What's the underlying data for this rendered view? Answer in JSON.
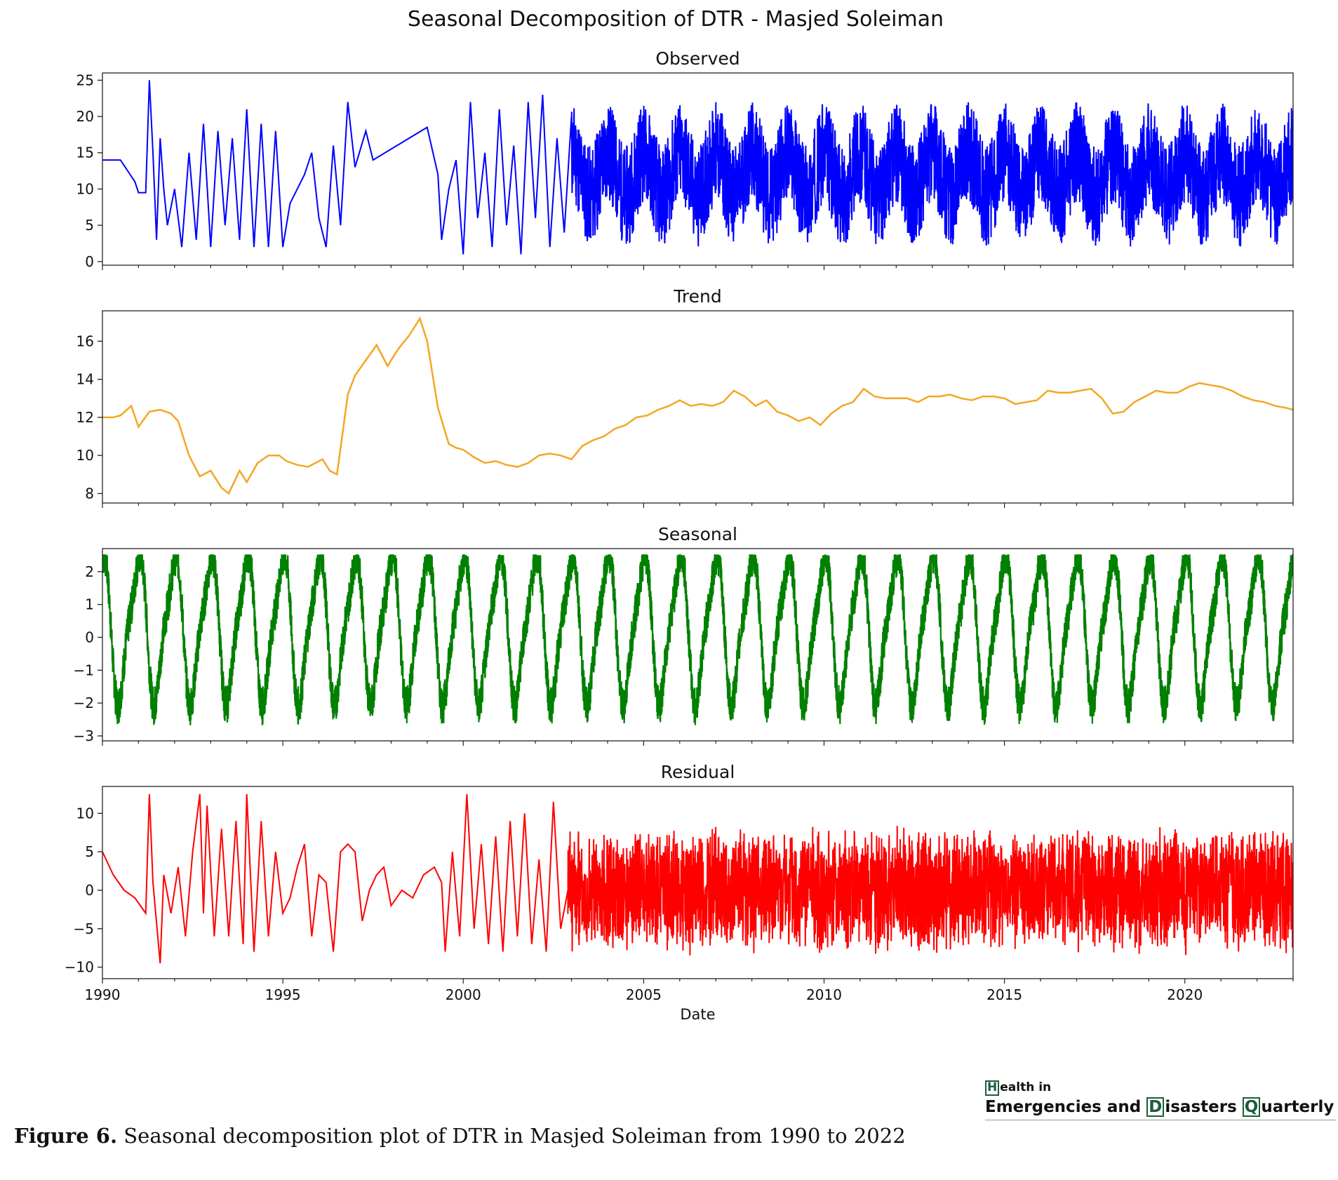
{
  "figure": {
    "suptitle": "Seasonal Decomposition of DTR - Masjed Soleiman",
    "caption_label": "Figure 6.",
    "caption_text": " Seasonal decomposition plot of DTR in Masjed Soleiman from 1990 to 2022"
  },
  "logo": {
    "line1_letter": "H",
    "line1_rest": "ealth in",
    "line2_word1": "Emergencies and ",
    "line2_letter2": "D",
    "line2_word2": "isasters ",
    "line2_letter3": "Q",
    "line2_word3": "uarterly",
    "accent_color": "#1b5e3a"
  },
  "chart_data": [
    {
      "type": "line",
      "title": "Observed",
      "color": "#0000ff",
      "xlim": [
        1990,
        2023
      ],
      "ylim": [
        -0.5,
        26
      ],
      "yticks": [
        0,
        5,
        10,
        15,
        20,
        25
      ],
      "ytick_labels": [
        "0",
        "5",
        "10",
        "15",
        "20",
        "25"
      ],
      "series": [
        {
          "x": [
            1990.0,
            1990.5,
            1990.9,
            1991.0,
            1991.2,
            1991.3,
            1991.4,
            1991.5,
            1991.6,
            1991.7,
            1991.8,
            1992.0,
            1992.2,
            1992.4,
            1992.6,
            1992.8,
            1993.0,
            1993.2,
            1993.4,
            1993.6,
            1993.8,
            1994.0,
            1994.2,
            1994.4,
            1994.6,
            1994.8,
            1995.0,
            1995.2,
            1995.4,
            1995.6,
            1995.8,
            1996.0,
            1996.2,
            1996.4,
            1996.6,
            1996.8,
            1997.0,
            1997.3,
            1997.5,
            1999.0,
            1999.3,
            1999.4,
            1999.6,
            1999.8,
            2000.0,
            2000.2,
            2000.4,
            2000.6,
            2000.8,
            2001.0,
            2001.2,
            2001.4,
            2001.6,
            2001.8,
            2002.0,
            2002.2,
            2002.4,
            2002.6,
            2002.8,
            2003.0
          ],
          "y": [
            14,
            14,
            11,
            9.5,
            9.5,
            25,
            15,
            3,
            17,
            10,
            5,
            10,
            2,
            15,
            3,
            19,
            2,
            18,
            5,
            17,
            3,
            21,
            2,
            19,
            2,
            18,
            2,
            8,
            10,
            12,
            15,
            6,
            2,
            16,
            5,
            22,
            13,
            18,
            14,
            18.5,
            12,
            3,
            10,
            14,
            1,
            22,
            6,
            15,
            2,
            21,
            5,
            16,
            1,
            22,
            6,
            23,
            2,
            17,
            4,
            20
          ]
        }
      ]
    },
    {
      "type": "line",
      "title": "Trend",
      "color": "#f5a623",
      "xlim": [
        1990,
        2023
      ],
      "ylim": [
        7.5,
        17.6
      ],
      "yticks": [
        8,
        10,
        12,
        14,
        16
      ],
      "ytick_labels": [
        "8",
        "10",
        "12",
        "14",
        "16"
      ],
      "series": [
        {
          "x": [
            1990.0,
            1990.3,
            1990.5,
            1990.8,
            1991.0,
            1991.3,
            1991.6,
            1991.9,
            1992.1,
            1992.4,
            1992.7,
            1993.0,
            1993.3,
            1993.5,
            1993.8,
            1994.0,
            1994.3,
            1994.6,
            1994.9,
            1995.1,
            1995.4,
            1995.7,
            1995.9,
            1996.1,
            1996.3,
            1996.5,
            1996.8,
            1997.0,
            1997.3,
            1997.6,
            1997.9,
            1998.2,
            1998.5,
            1998.8,
            1999.0,
            1999.3,
            1999.6,
            1999.8,
            2000.0,
            2000.3,
            2000.6,
            2000.9,
            2001.2,
            2001.5,
            2001.8,
            2002.1,
            2002.4,
            2002.7,
            2003.0,
            2003.3,
            2003.6,
            2003.9,
            2004.2,
            2004.5,
            2004.8,
            2005.1,
            2005.4,
            2005.7,
            2006.0,
            2006.3,
            2006.6,
            2006.9,
            2007.2,
            2007.5,
            2007.8,
            2008.1,
            2008.4,
            2008.7,
            2009.0,
            2009.3,
            2009.6,
            2009.9,
            2010.2,
            2010.5,
            2010.8,
            2011.1,
            2011.4,
            2011.7,
            2012.0,
            2012.3,
            2012.6,
            2012.9,
            2013.2,
            2013.5,
            2013.8,
            2014.1,
            2014.4,
            2014.7,
            2015.0,
            2015.3,
            2015.6,
            2015.9,
            2016.2,
            2016.5,
            2016.8,
            2017.1,
            2017.4,
            2017.7,
            2018.0,
            2018.3,
            2018.6,
            2018.9,
            2019.2,
            2019.5,
            2019.8,
            2020.1,
            2020.4,
            2020.7,
            2021.0,
            2021.3,
            2021.6,
            2021.9,
            2022.2,
            2022.5,
            2022.8,
            2023.0
          ],
          "y": [
            12.0,
            12.0,
            12.1,
            12.6,
            11.5,
            12.3,
            12.4,
            12.2,
            11.8,
            10.0,
            8.9,
            9.2,
            8.3,
            8.0,
            9.2,
            8.6,
            9.6,
            10.0,
            10.0,
            9.7,
            9.5,
            9.4,
            9.6,
            9.8,
            9.2,
            9.0,
            13.2,
            14.2,
            15.0,
            15.8,
            14.7,
            15.6,
            16.3,
            17.2,
            16.0,
            12.5,
            10.6,
            10.4,
            10.3,
            9.9,
            9.6,
            9.7,
            9.5,
            9.4,
            9.6,
            10.0,
            10.1,
            10.0,
            9.8,
            10.5,
            10.8,
            11.0,
            11.4,
            11.6,
            12.0,
            12.1,
            12.4,
            12.6,
            12.9,
            12.6,
            12.7,
            12.6,
            12.8,
            13.4,
            13.1,
            12.6,
            12.9,
            12.3,
            12.1,
            11.8,
            12.0,
            11.6,
            12.2,
            12.6,
            12.8,
            13.5,
            13.1,
            13.0,
            13.0,
            13.0,
            12.8,
            13.1,
            13.1,
            13.2,
            13.0,
            12.9,
            13.1,
            13.1,
            13.0,
            12.7,
            12.8,
            12.9,
            13.4,
            13.3,
            13.3,
            13.4,
            13.5,
            13.0,
            12.2,
            12.3,
            12.8,
            13.1,
            13.4,
            13.3,
            13.3,
            13.6,
            13.8,
            13.7,
            13.6,
            13.4,
            13.1,
            12.9,
            12.8,
            12.6,
            12.5,
            12.4
          ]
        }
      ]
    },
    {
      "type": "line",
      "title": "Seasonal",
      "color": "#008000",
      "xlim": [
        1990,
        2023
      ],
      "ylim": [
        -3.15,
        2.7
      ],
      "yticks": [
        -3,
        -2,
        -1,
        0,
        1,
        2
      ],
      "ytick_labels": [
        "−3",
        "−2",
        "−1",
        "0",
        "1",
        "2"
      ],
      "period_years": 1,
      "amplitude_high": 2.5,
      "amplitude_low": -2.9
    },
    {
      "type": "line",
      "title": "Residual",
      "color": "#ff0000",
      "xlim": [
        1990,
        2023
      ],
      "ylim": [
        -11.5,
        13.5
      ],
      "yticks": [
        -10,
        -5,
        0,
        5,
        10
      ],
      "ytick_labels": [
        "−10",
        "−5",
        "0",
        "5",
        "10"
      ],
      "xticks": [
        1990,
        1995,
        2000,
        2005,
        2010,
        2015,
        2020
      ],
      "xtick_labels": [
        "1990",
        "1995",
        "2000",
        "2005",
        "2010",
        "2015",
        "2020"
      ],
      "xlabel": "Date",
      "series": [
        {
          "x": [
            1990.0,
            1990.3,
            1990.6,
            1990.9,
            1991.2,
            1991.3,
            1991.4,
            1991.6,
            1991.7,
            1991.9,
            1992.1,
            1992.3,
            1992.5,
            1992.7,
            1992.8,
            1992.9,
            1993.1,
            1993.3,
            1993.5,
            1993.7,
            1993.9,
            1994.0,
            1994.2,
            1994.4,
            1994.6,
            1994.8,
            1995.0,
            1995.2,
            1995.4,
            1995.6,
            1995.8,
            1996.0,
            1996.2,
            1996.4,
            1996.6,
            1996.8,
            1997.0,
            1997.2,
            1997.4,
            1997.6,
            1997.8,
            1998.0,
            1998.3,
            1998.6,
            1998.9,
            1999.2,
            1999.4,
            1999.5,
            1999.7,
            1999.9,
            2000.1,
            2000.3,
            2000.5,
            2000.7,
            2000.9,
            2001.1,
            2001.3,
            2001.5,
            2001.7,
            2001.9,
            2002.1,
            2002.3,
            2002.5,
            2002.7,
            2002.9
          ],
          "y": [
            5,
            2,
            0,
            -1,
            -3,
            12.5,
            1,
            -9.5,
            2,
            -3,
            3,
            -6,
            5,
            12.5,
            -3,
            11,
            -6,
            8,
            -6,
            9,
            -7,
            12.5,
            -8,
            9,
            -6,
            5,
            -3,
            -1,
            3,
            6,
            -6,
            2,
            1,
            -8,
            5,
            6,
            5,
            -4,
            0,
            2,
            3,
            -2,
            0,
            -1,
            2,
            3,
            1,
            -8,
            5,
            -6,
            12.5,
            -5,
            6,
            -7,
            7,
            -8,
            9,
            -6,
            10,
            -7,
            4,
            -8,
            11.5,
            -5,
            0
          ]
        }
      ]
    }
  ]
}
